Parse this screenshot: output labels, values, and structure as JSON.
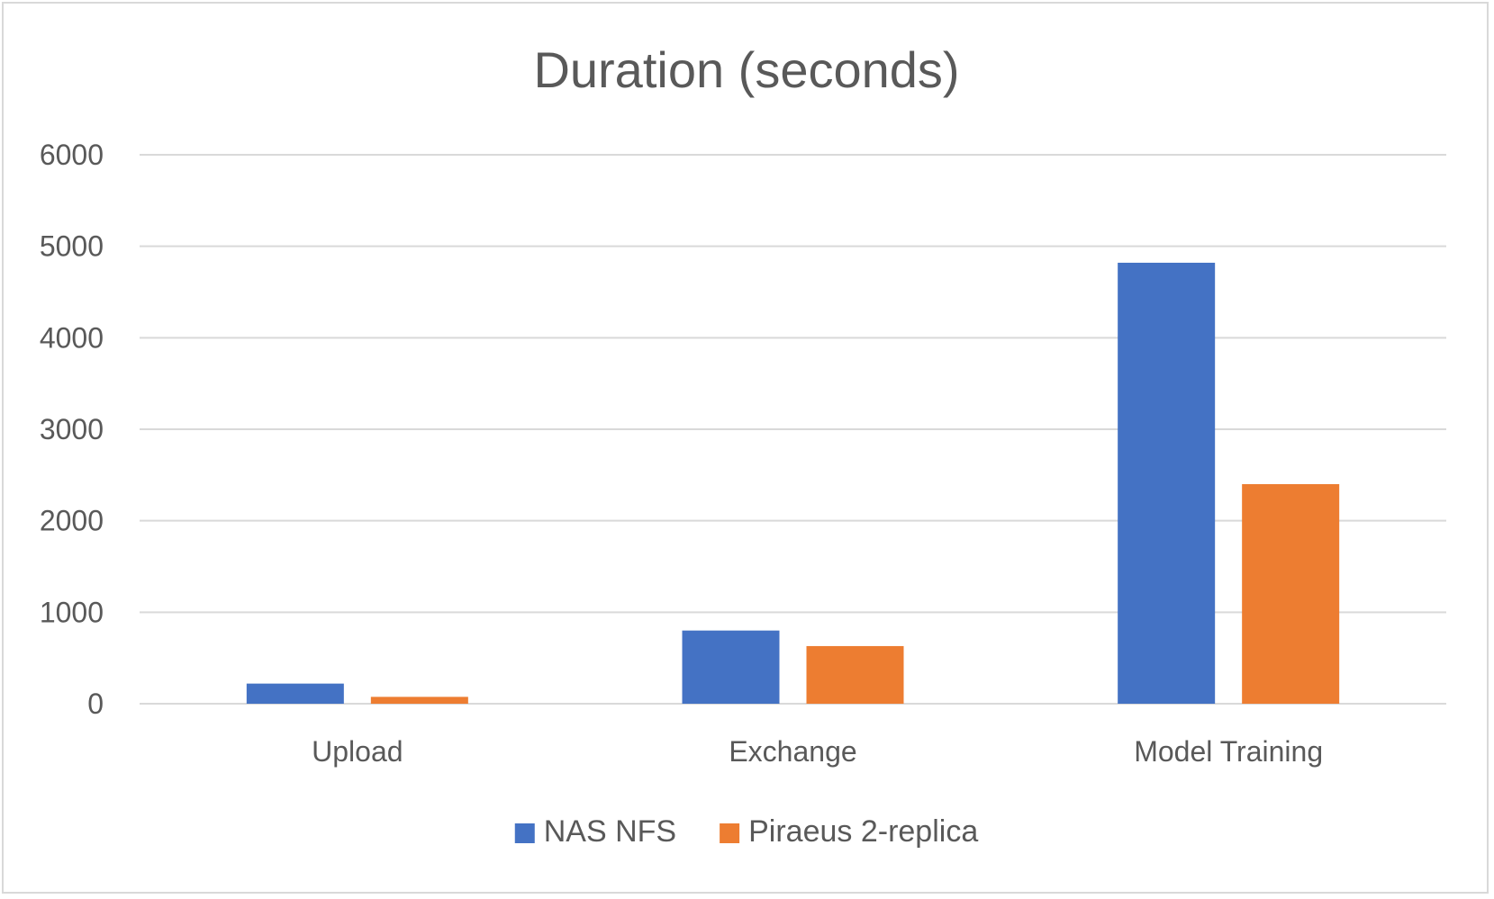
{
  "chart_data": {
    "type": "bar",
    "title": "Duration (seconds)",
    "categories": [
      "Upload",
      "Exchange",
      "Model Training"
    ],
    "series": [
      {
        "name": "NAS NFS",
        "color": "#4472c4",
        "values": [
          220,
          800,
          4820
        ]
      },
      {
        "name": "Piraeus 2-replica",
        "color": "#ed7d31",
        "values": [
          75,
          630,
          2400
        ]
      }
    ],
    "ylim": [
      0,
      6000
    ],
    "yticks": [
      0,
      1000,
      2000,
      3000,
      4000,
      5000,
      6000
    ],
    "grid": true,
    "legend": "bottom"
  }
}
